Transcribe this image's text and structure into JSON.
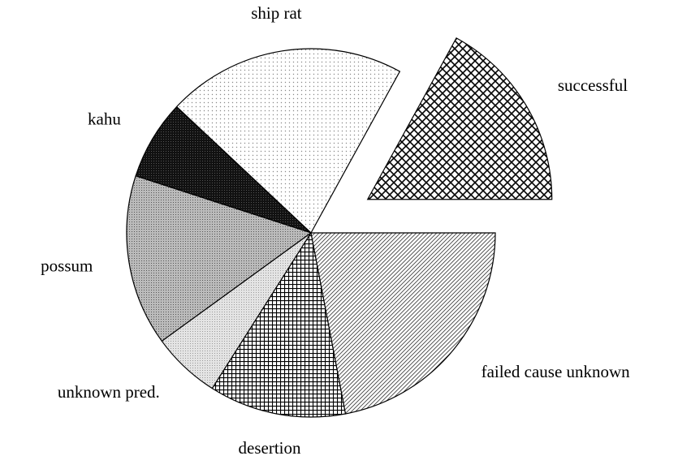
{
  "chart_data": {
    "type": "pie",
    "categories": [
      "successful",
      "ship rat",
      "kahu",
      "possum",
      "unknown pred.",
      "desertion",
      "failed cause unknown"
    ],
    "values": [
      17,
      21,
      7,
      15,
      6,
      12,
      22
    ],
    "exploded": [
      true,
      false,
      false,
      false,
      false,
      false,
      false
    ]
  }
}
